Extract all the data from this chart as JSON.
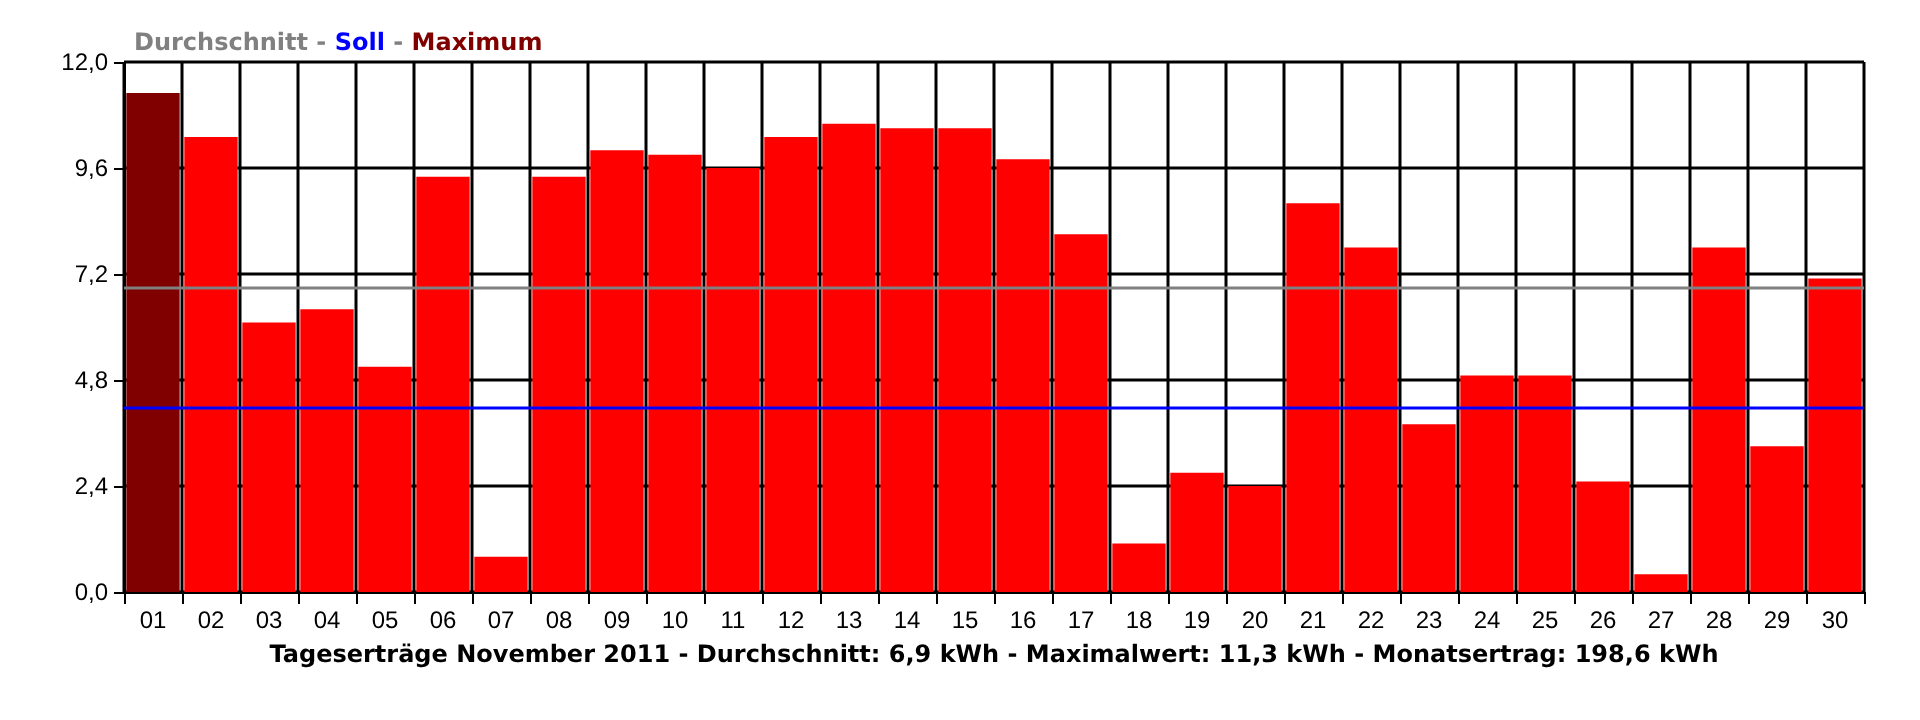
{
  "chart_data": {
    "type": "bar",
    "xlabel": "Tageserträge November 2011 - Durchschnitt: 6,9 kWh - Maximalwert: 11,3 kWh - Monatsertrag: 198,6 kWh",
    "categories": [
      "01",
      "02",
      "03",
      "04",
      "05",
      "06",
      "07",
      "08",
      "09",
      "10",
      "11",
      "12",
      "13",
      "14",
      "15",
      "16",
      "17",
      "18",
      "19",
      "20",
      "21",
      "22",
      "23",
      "24",
      "25",
      "26",
      "27",
      "28",
      "29",
      "30"
    ],
    "values": [
      11.3,
      10.3,
      6.1,
      6.4,
      5.1,
      9.4,
      0.8,
      9.4,
      10.0,
      9.9,
      9.6,
      10.3,
      10.6,
      10.5,
      10.5,
      9.8,
      8.1,
      1.1,
      2.7,
      2.4,
      8.8,
      7.8,
      3.8,
      4.9,
      4.9,
      2.5,
      0.4,
      7.8,
      3.3,
      7.1
    ],
    "colors": [
      "#800000",
      "#ff0000",
      "#ff0000",
      "#ff0000",
      "#ff0000",
      "#ff0000",
      "#ff0000",
      "#ff0000",
      "#ff0000",
      "#ff0000",
      "#ff0000",
      "#ff0000",
      "#ff0000",
      "#ff0000",
      "#ff0000",
      "#ff0000",
      "#ff0000",
      "#ff0000",
      "#ff0000",
      "#ff0000",
      "#ff0000",
      "#ff0000",
      "#ff0000",
      "#ff0000",
      "#ff0000",
      "#ff0000",
      "#ff0000",
      "#ff0000",
      "#ff0000",
      "#ff0000"
    ],
    "ylim": [
      0,
      12
    ],
    "yticks": [
      {
        "value": 0,
        "label": "0,0"
      },
      {
        "value": 2.4,
        "label": "2,4"
      },
      {
        "value": 4.8,
        "label": "4,8"
      },
      {
        "value": 7.2,
        "label": "7,2"
      },
      {
        "value": 9.6,
        "label": "9,6"
      },
      {
        "value": 12,
        "label": "12,0"
      }
    ],
    "legend_title": "Durchschnitt - Soll - Maximum",
    "ref_lines": [
      {
        "axis": "y",
        "value": 6.9,
        "color": "#808080"
      },
      {
        "axis": "y",
        "value": 4.2,
        "color": "#0000ff"
      }
    ],
    "grid": true
  }
}
